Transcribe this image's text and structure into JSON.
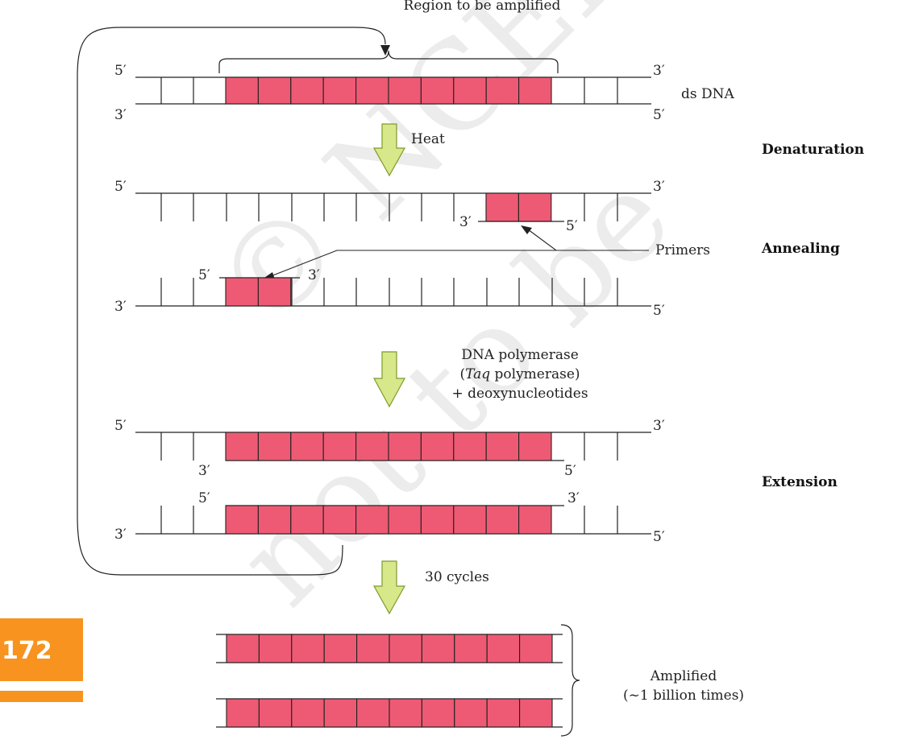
{
  "region_label": "Region to be amplified",
  "ds_dna_label": "ds DNA",
  "step_labels": {
    "heat": "Heat",
    "polymerase_line1": "DNA polymerase",
    "polymerase_italic": "Taq",
    "polymerase_line2_rest": " polymerase)",
    "polymerase_line2_open": "(",
    "polymerase_line3": "+ deoxynucleotides",
    "cycles": "30 cycles"
  },
  "primers_label": "Primers",
  "stages": {
    "denaturation": "Denaturation",
    "annealing": "Annealing",
    "extension": "Extension"
  },
  "amplified_line1": "Amplified",
  "amplified_line2": "(~1 billion times)",
  "end_5": "5′",
  "end_3": "3′",
  "page_number": "172",
  "watermark": "© NCERT not to be republished",
  "colors": {
    "segment_fill": "#ee5a74",
    "arrow_fill": "#d6e88a",
    "arrow_stroke": "#7d9a2a",
    "page_tab": "#f7931e",
    "line": "#222222"
  }
}
